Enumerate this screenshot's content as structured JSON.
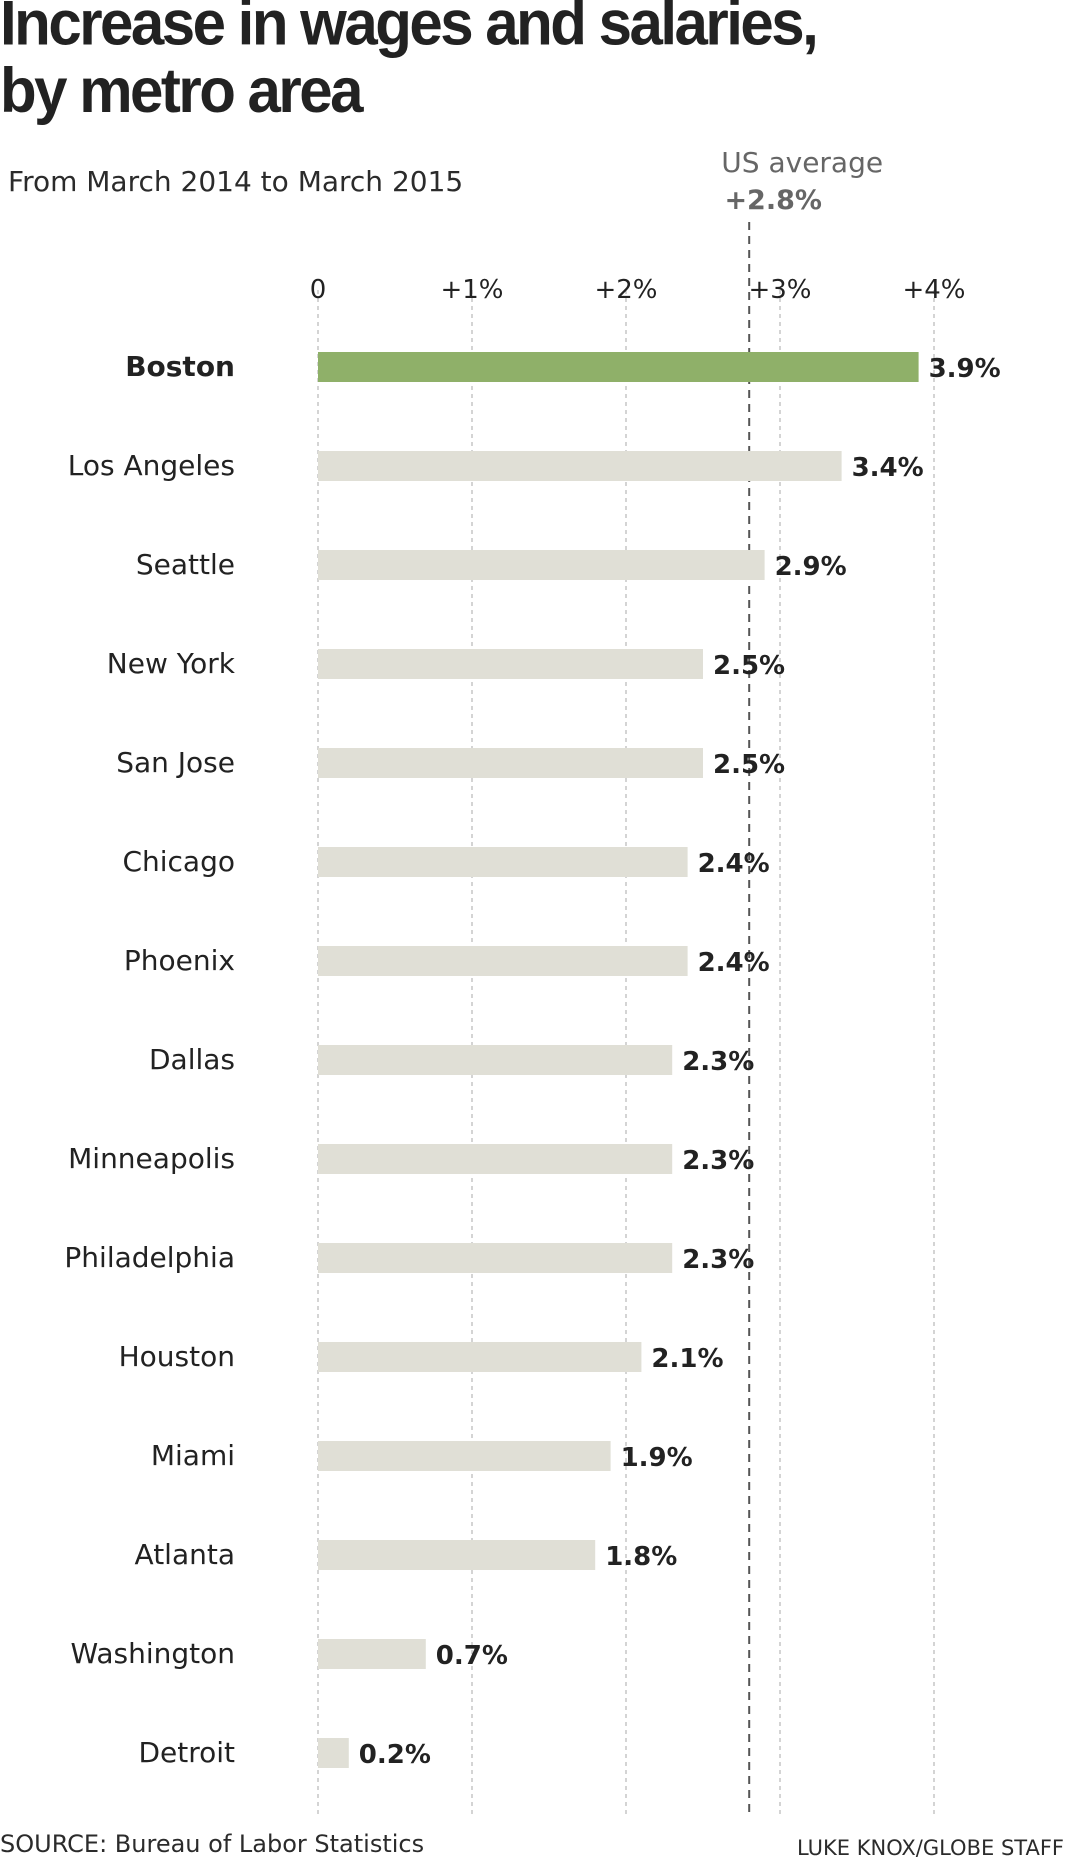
{
  "title_line1": "Increase in wages and salaries,",
  "title_line2": "by metro area",
  "subtitle": "From March 2014 to March 2015",
  "source": "SOURCE: Bureau of Labor Statistics",
  "credit": "LUKE KNOX/GLOBE STAFF",
  "colors": {
    "highlight_bar": "#8fb069",
    "bar": "#e0dfd6",
    "grid": "#aaaaaa",
    "reference_line": "#555555",
    "text": "#222222",
    "muted_text": "#666666"
  },
  "chart_data": {
    "type": "bar",
    "orientation": "horizontal",
    "xlim": [
      0,
      4
    ],
    "ticks": [
      {
        "value": 0,
        "label": "0"
      },
      {
        "value": 1,
        "label": "+1%"
      },
      {
        "value": 2,
        "label": "+2%"
      },
      {
        "value": 3,
        "label": "+3%"
      },
      {
        "value": 4,
        "label": "+4%"
      }
    ],
    "grid": "vertical dashed",
    "reference_line": {
      "value": 2.8,
      "label_line1": "US average",
      "label_line2": "+2.8%"
    },
    "highlight": "Boston",
    "categories": [
      "Boston",
      "Los Angeles",
      "Seattle",
      "New York",
      "San Jose",
      "Chicago",
      "Phoenix",
      "Dallas",
      "Minneapolis",
      "Philadelphia",
      "Houston",
      "Miami",
      "Atlanta",
      "Washington",
      "Detroit"
    ],
    "values": [
      3.9,
      3.4,
      2.9,
      2.5,
      2.5,
      2.4,
      2.4,
      2.3,
      2.3,
      2.3,
      2.1,
      1.9,
      1.8,
      0.7,
      0.2
    ],
    "value_labels": [
      "3.9%",
      "3.4%",
      "2.9%",
      "2.5%",
      "2.5%",
      "2.4%",
      "2.4%",
      "2.3%",
      "2.3%",
      "2.3%",
      "2.1%",
      "1.9%",
      "1.8%",
      "0.7%",
      "0.2%"
    ]
  }
}
